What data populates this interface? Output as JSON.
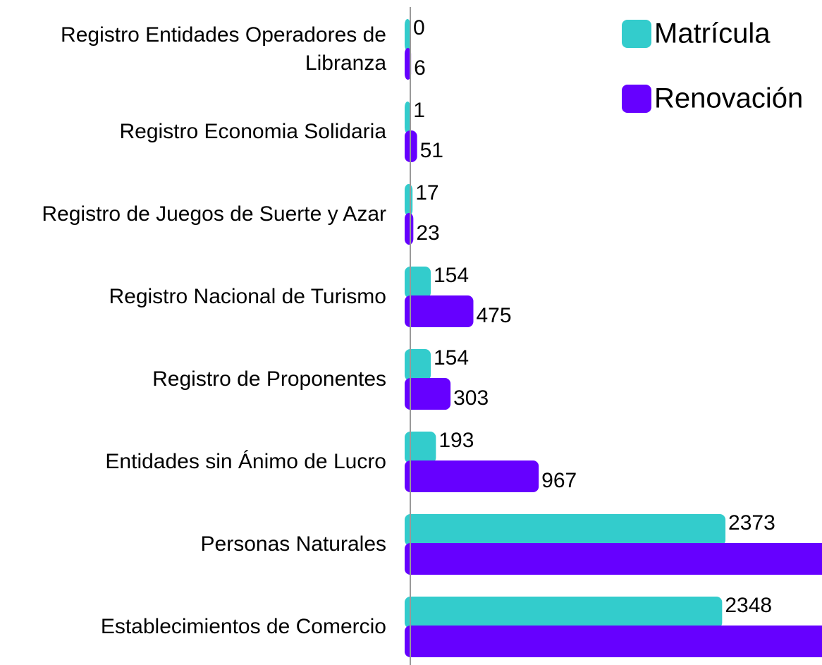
{
  "chart_data": {
    "type": "bar",
    "orientation": "horizontal",
    "categories": [
      "Registro Entidades Operadores de Libranza",
      "Registro Economia Solidaria",
      "Registro de Juegos de Suerte y Azar",
      "Registro Nacional de Turismo",
      "Registro de Proponentes",
      "Entidades sin Ánimo de Lucro",
      "Personas Naturales",
      "Establecimientos de Comercio"
    ],
    "series": [
      {
        "name": "Matrícula",
        "color": "#33cccc",
        "values": [
          0,
          1,
          17,
          154,
          154,
          193,
          2373,
          2348
        ]
      },
      {
        "name": "Renovación",
        "color": "#6600ff",
        "values": [
          6,
          51,
          23,
          475,
          303,
          967,
          3150,
          3150
        ]
      }
    ],
    "xlim": [
      0,
      3100
    ],
    "legend": "top-right"
  }
}
